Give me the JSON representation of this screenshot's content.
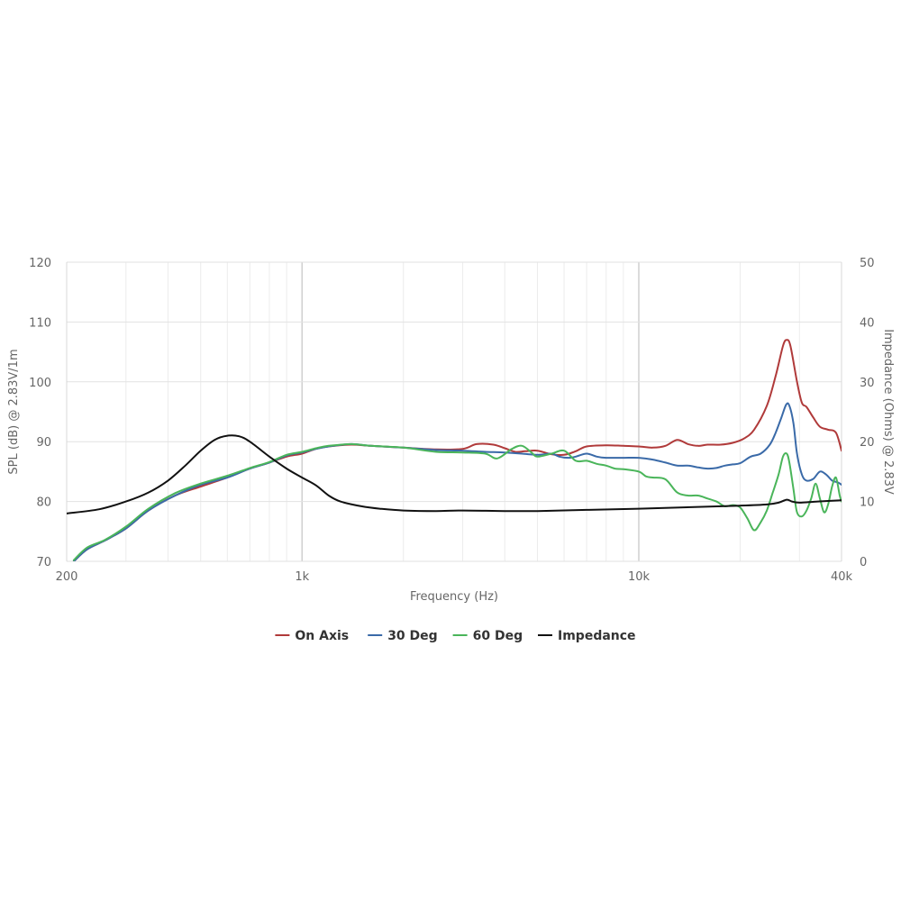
{
  "chart_data": {
    "type": "line",
    "xlabel": "Frequency (Hz)",
    "ylabel": "SPL (dB) @ 2.83V/1m",
    "y2label": "Impedance (Ohms) @ 2.83V",
    "x_scale": "log",
    "xlim": [
      200,
      40000
    ],
    "ylim": [
      70,
      120
    ],
    "y2lim": [
      0,
      50
    ],
    "x_ticks": [
      {
        "value": 200,
        "label": "200"
      },
      {
        "value": 1000,
        "label": "1k"
      },
      {
        "value": 10000,
        "label": "10k"
      },
      {
        "value": 40000,
        "label": "40k"
      }
    ],
    "y_ticks": [
      {
        "value": 70,
        "label": "70"
      },
      {
        "value": 80,
        "label": "80"
      },
      {
        "value": 90,
        "label": "90"
      },
      {
        "value": 100,
        "label": "100"
      },
      {
        "value": 110,
        "label": "110"
      },
      {
        "value": 120,
        "label": "120"
      }
    ],
    "y2_ticks": [
      {
        "value": 0,
        "label": "0"
      },
      {
        "value": 10,
        "label": "10"
      },
      {
        "value": 20,
        "label": "20"
      },
      {
        "value": 30,
        "label": "30"
      },
      {
        "value": 40,
        "label": "40"
      },
      {
        "value": 50,
        "label": "50"
      }
    ],
    "grid": true,
    "legend_position": "bottom-center",
    "series": [
      {
        "name": "On Axis",
        "color": "#b03a3a",
        "axis": "left",
        "points": [
          [
            210,
            70
          ],
          [
            230,
            72
          ],
          [
            260,
            73.5
          ],
          [
            300,
            75.5
          ],
          [
            350,
            78.5
          ],
          [
            420,
            81
          ],
          [
            500,
            82.5
          ],
          [
            600,
            84
          ],
          [
            700,
            85.5
          ],
          [
            800,
            86.5
          ],
          [
            900,
            87.5
          ],
          [
            1000,
            88
          ],
          [
            1100,
            88.8
          ],
          [
            1200,
            89.2
          ],
          [
            1400,
            89.5
          ],
          [
            1600,
            89.3
          ],
          [
            2000,
            89
          ],
          [
            2500,
            88.7
          ],
          [
            3000,
            88.8
          ],
          [
            3300,
            89.6
          ],
          [
            3700,
            89.5
          ],
          [
            4000,
            88.9
          ],
          [
            4300,
            88.3
          ],
          [
            4600,
            88.4
          ],
          [
            5000,
            88.5
          ],
          [
            5500,
            87.9
          ],
          [
            6000,
            87.8
          ],
          [
            6500,
            88.4
          ],
          [
            7000,
            89.2
          ],
          [
            8000,
            89.4
          ],
          [
            9000,
            89.3
          ],
          [
            10000,
            89.2
          ],
          [
            11000,
            89
          ],
          [
            12000,
            89.3
          ],
          [
            13000,
            90.3
          ],
          [
            14000,
            89.6
          ],
          [
            15000,
            89.3
          ],
          [
            16000,
            89.5
          ],
          [
            17500,
            89.5
          ],
          [
            19000,
            89.8
          ],
          [
            20500,
            90.5
          ],
          [
            22000,
            92
          ],
          [
            24000,
            96
          ],
          [
            25500,
            101
          ],
          [
            26800,
            106
          ],
          [
            27500,
            107
          ],
          [
            28200,
            106
          ],
          [
            29500,
            100
          ],
          [
            30500,
            96.5
          ],
          [
            31500,
            95.8
          ],
          [
            33000,
            94
          ],
          [
            34500,
            92.5
          ],
          [
            36500,
            92
          ],
          [
            38500,
            91.5
          ],
          [
            40000,
            88.5
          ]
        ]
      },
      {
        "name": "30 Deg",
        "color": "#3a6aa8",
        "axis": "left",
        "points": [
          [
            210,
            70
          ],
          [
            230,
            72
          ],
          [
            260,
            73.5
          ],
          [
            300,
            75.5
          ],
          [
            350,
            78.5
          ],
          [
            420,
            81
          ],
          [
            500,
            82.8
          ],
          [
            600,
            84
          ],
          [
            700,
            85.5
          ],
          [
            800,
            86.5
          ],
          [
            900,
            87.7
          ],
          [
            1000,
            88.2
          ],
          [
            1100,
            88.8
          ],
          [
            1200,
            89.2
          ],
          [
            1400,
            89.6
          ],
          [
            1600,
            89.3
          ],
          [
            2000,
            89
          ],
          [
            2500,
            88.6
          ],
          [
            3000,
            88.5
          ],
          [
            3500,
            88.3
          ],
          [
            4000,
            88.2
          ],
          [
            4500,
            88
          ],
          [
            5000,
            87.8
          ],
          [
            5500,
            88
          ],
          [
            5800,
            87.5
          ],
          [
            6200,
            87.3
          ],
          [
            6500,
            87.5
          ],
          [
            7000,
            88
          ],
          [
            7500,
            87.5
          ],
          [
            8000,
            87.3
          ],
          [
            9000,
            87.3
          ],
          [
            10000,
            87.3
          ],
          [
            11000,
            87
          ],
          [
            12000,
            86.5
          ],
          [
            13000,
            86
          ],
          [
            14000,
            86
          ],
          [
            15000,
            85.7
          ],
          [
            16000,
            85.5
          ],
          [
            17000,
            85.6
          ],
          [
            18000,
            86
          ],
          [
            19000,
            86.2
          ],
          [
            20000,
            86.4
          ],
          [
            21500,
            87.5
          ],
          [
            23000,
            88
          ],
          [
            24500,
            89.5
          ],
          [
            25500,
            91.5
          ],
          [
            26500,
            94
          ],
          [
            27400,
            96.2
          ],
          [
            28000,
            96
          ],
          [
            28800,
            93
          ],
          [
            29500,
            88
          ],
          [
            30500,
            84.5
          ],
          [
            31500,
            83.5
          ],
          [
            33000,
            83.8
          ],
          [
            34500,
            85
          ],
          [
            36000,
            84.5
          ],
          [
            37500,
            83.5
          ],
          [
            39000,
            83.2
          ],
          [
            40000,
            82.8
          ]
        ]
      },
      {
        "name": "60 Deg",
        "color": "#4ab55a",
        "axis": "left",
        "points": [
          [
            210,
            70.2
          ],
          [
            230,
            72.3
          ],
          [
            260,
            73.6
          ],
          [
            300,
            75.8
          ],
          [
            350,
            78.8
          ],
          [
            420,
            81.4
          ],
          [
            500,
            83
          ],
          [
            600,
            84.3
          ],
          [
            700,
            85.6
          ],
          [
            800,
            86.6
          ],
          [
            900,
            87.8
          ],
          [
            1000,
            88.3
          ],
          [
            1100,
            88.9
          ],
          [
            1200,
            89.3
          ],
          [
            1400,
            89.6
          ],
          [
            1600,
            89.3
          ],
          [
            2000,
            89
          ],
          [
            2500,
            88.3
          ],
          [
            3000,
            88.2
          ],
          [
            3500,
            88
          ],
          [
            3800,
            87.2
          ],
          [
            4200,
            88.8
          ],
          [
            4500,
            89.3
          ],
          [
            4800,
            88.2
          ],
          [
            5000,
            87.5
          ],
          [
            5500,
            88
          ],
          [
            6000,
            88.5
          ],
          [
            6500,
            86.8
          ],
          [
            7000,
            86.8
          ],
          [
            7500,
            86.3
          ],
          [
            8000,
            86
          ],
          [
            8500,
            85.5
          ],
          [
            9000,
            85.4
          ],
          [
            10000,
            85
          ],
          [
            10500,
            84.2
          ],
          [
            11000,
            84
          ],
          [
            12000,
            83.7
          ],
          [
            13000,
            81.5
          ],
          [
            14000,
            81
          ],
          [
            15000,
            81
          ],
          [
            16000,
            80.5
          ],
          [
            17000,
            80
          ],
          [
            18000,
            79.2
          ],
          [
            19000,
            79.4
          ],
          [
            20000,
            79
          ],
          [
            21000,
            77.2
          ],
          [
            22000,
            75.2
          ],
          [
            23000,
            76.5
          ],
          [
            24000,
            78.5
          ],
          [
            25000,
            81.5
          ],
          [
            26000,
            84.5
          ],
          [
            26800,
            87.5
          ],
          [
            27500,
            88
          ],
          [
            28000,
            86.5
          ],
          [
            28800,
            82
          ],
          [
            29500,
            78.2
          ],
          [
            30500,
            77.5
          ],
          [
            31500,
            78.5
          ],
          [
            32500,
            80.5
          ],
          [
            33500,
            83
          ],
          [
            34500,
            80.5
          ],
          [
            35500,
            78.2
          ],
          [
            36500,
            79.5
          ],
          [
            37500,
            82.5
          ],
          [
            38500,
            84
          ],
          [
            39500,
            81
          ],
          [
            40000,
            80
          ]
        ]
      },
      {
        "name": "Impedance",
        "color": "#111111",
        "axis": "right",
        "points": [
          [
            200,
            8
          ],
          [
            250,
            8.7
          ],
          [
            300,
            10
          ],
          [
            350,
            11.5
          ],
          [
            400,
            13.5
          ],
          [
            450,
            16
          ],
          [
            500,
            18.5
          ],
          [
            550,
            20.3
          ],
          [
            600,
            21
          ],
          [
            650,
            20.9
          ],
          [
            700,
            20
          ],
          [
            800,
            17.5
          ],
          [
            900,
            15.5
          ],
          [
            1000,
            14
          ],
          [
            1100,
            12.7
          ],
          [
            1200,
            11
          ],
          [
            1300,
            10
          ],
          [
            1500,
            9.2
          ],
          [
            1700,
            8.8
          ],
          [
            2000,
            8.5
          ],
          [
            2500,
            8.4
          ],
          [
            3000,
            8.5
          ],
          [
            4000,
            8.4
          ],
          [
            5000,
            8.4
          ],
          [
            7000,
            8.6
          ],
          [
            10000,
            8.8
          ],
          [
            15000,
            9.1
          ],
          [
            20000,
            9.3
          ],
          [
            24000,
            9.5
          ],
          [
            26000,
            9.8
          ],
          [
            27500,
            10.3
          ],
          [
            28500,
            10
          ],
          [
            30000,
            9.8
          ],
          [
            34000,
            10
          ],
          [
            40000,
            10.2
          ]
        ]
      }
    ]
  }
}
